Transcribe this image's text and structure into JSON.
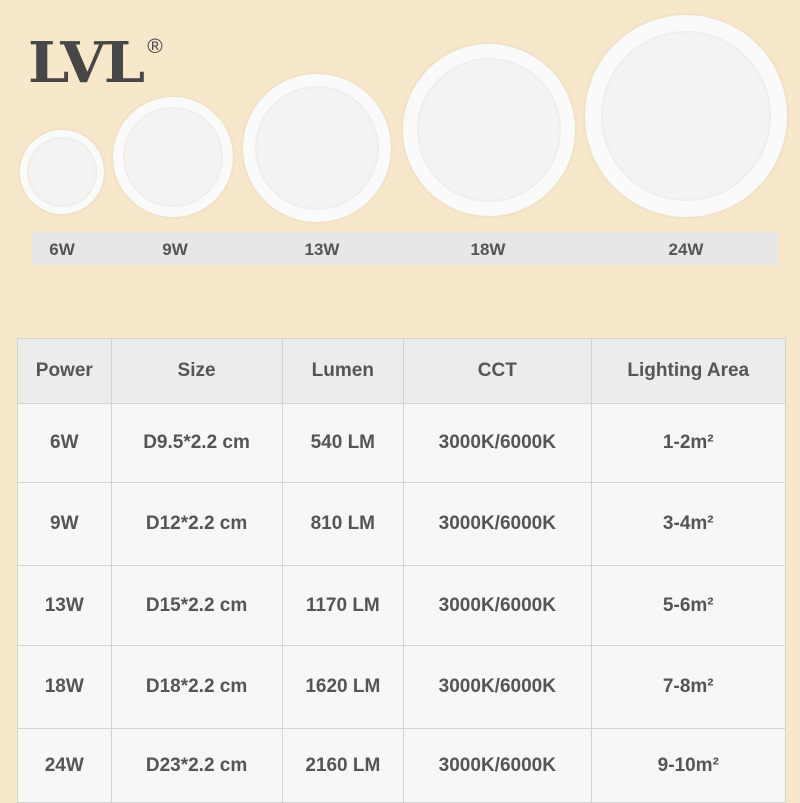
{
  "brand": {
    "logo": "LVL",
    "registered": "®"
  },
  "products": [
    {
      "label": "6W"
    },
    {
      "label": "9W"
    },
    {
      "label": "13W"
    },
    {
      "label": "18W"
    },
    {
      "label": "24W"
    }
  ],
  "table": {
    "headers": [
      "Power",
      "Size",
      "Lumen",
      "CCT",
      "Lighting Area"
    ],
    "rows": [
      [
        "6W",
        "D9.5*2.2 cm",
        "540 LM",
        "3000K/6000K",
        "1-2m²"
      ],
      [
        "9W",
        "D12*2.2 cm",
        "810 LM",
        "3000K/6000K",
        "3-4m²"
      ],
      [
        "13W",
        "D15*2.2 cm",
        "1170 LM",
        "3000K/6000K",
        "5-6m²"
      ],
      [
        "18W",
        "D18*2.2 cm",
        "1620 LM",
        "3000K/6000K",
        "7-8m²"
      ],
      [
        "24W",
        "D23*2.2 cm",
        "2160 LM",
        "3000K/6000K",
        "9-10m²"
      ]
    ]
  },
  "colors": {
    "background": "#f7e8cb",
    "text": "#555555",
    "header_bg": "#ececec"
  }
}
